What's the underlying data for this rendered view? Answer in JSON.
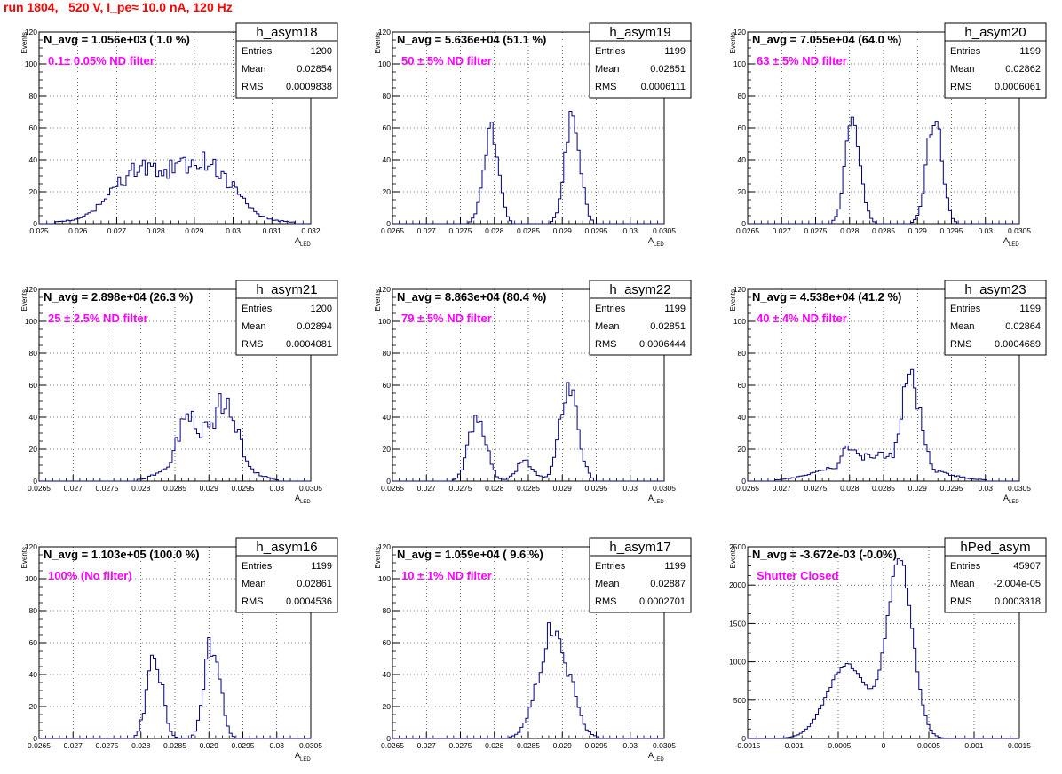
{
  "page": {
    "title": "run 1804,   520 V, I_pe≈ 10.0 nA, 120 Hz"
  },
  "colors": {
    "hist": "#000080",
    "title": "#ff0000",
    "annotation": "#ff00ff",
    "grid": "#000000"
  },
  "chart_data": [
    {
      "type": "histogram",
      "name": "h_asym18",
      "avg_text": "N_avg = 1.056e+03 ( 1.0 %)",
      "filter_text": "0.1± 0.05% ND filter",
      "stats": {
        "entries": "1200",
        "mean": "0.02854",
        "rms": "0.0009838"
      },
      "xlabel": "A",
      "xlabel_sub": "LED",
      "ylabel": "Events",
      "xlim": [
        0.025,
        0.032
      ],
      "ylim": [
        0,
        120
      ],
      "xticks": [
        "0.025",
        "0.026",
        "0.027",
        "0.028",
        "0.029",
        "0.03",
        "0.031",
        "0.032"
      ],
      "yticks": [
        "0",
        "20",
        "40",
        "60",
        "80",
        "100",
        "120"
      ],
      "profile": "broad",
      "peaks": [
        0.0276,
        0.0293
      ],
      "sigma": 0.0009,
      "peak_heights": [
        33,
        36
      ]
    },
    {
      "type": "histogram",
      "name": "h_asym19",
      "avg_text": "N_avg = 5.636e+04 (51.1 %)",
      "filter_text": "50 ± 5% ND filter",
      "stats": {
        "entries": "1199",
        "mean": "0.02851",
        "rms": "0.0006111"
      },
      "xlabel": "A",
      "xlabel_sub": "LED",
      "ylabel": "Events",
      "xlim": [
        0.0265,
        0.0305
      ],
      "ylim": [
        0,
        120
      ],
      "xticks": [
        "0.0265",
        "0.027",
        "0.0275",
        "0.028",
        "0.0285",
        "0.029",
        "0.0295",
        "0.03",
        "0.0305"
      ],
      "yticks": [
        "0",
        "20",
        "40",
        "60",
        "80",
        "100",
        "120"
      ],
      "profile": "double",
      "peaks": [
        0.02795,
        0.02915
      ],
      "sigma": 0.00011,
      "peak_heights": [
        63,
        70
      ]
    },
    {
      "type": "histogram",
      "name": "h_asym20",
      "avg_text": "N_avg = 7.055e+04 (64.0 %)",
      "filter_text": "63 ± 5% ND filter",
      "stats": {
        "entries": "1199",
        "mean": "0.02862",
        "rms": "0.0006061"
      },
      "xlabel": "A",
      "xlabel_sub": "LED",
      "ylabel": "Events",
      "xlim": [
        0.0265,
        0.0305
      ],
      "ylim": [
        0,
        120
      ],
      "xticks": [
        "0.0265",
        "0.027",
        "0.0275",
        "0.028",
        "0.0285",
        "0.029",
        "0.0295",
        "0.03",
        "0.0305"
      ],
      "yticks": [
        "0",
        "20",
        "40",
        "60",
        "80",
        "100",
        "120"
      ],
      "profile": "double",
      "peaks": [
        0.02805,
        0.02925
      ],
      "sigma": 0.00011,
      "peak_heights": [
        65,
        68
      ]
    },
    {
      "type": "histogram",
      "name": "h_asym21",
      "avg_text": "N_avg = 2.898e+04 (26.3 %)",
      "filter_text": "25 ± 2.5% ND filter",
      "stats": {
        "entries": "1200",
        "mean": "0.02894",
        "rms": "0.0004081"
      },
      "xlabel": "A",
      "xlabel_sub": "LED",
      "ylabel": "Events",
      "xlim": [
        0.0265,
        0.0305
      ],
      "ylim": [
        0,
        120
      ],
      "xticks": [
        "0.0265",
        "0.027",
        "0.0275",
        "0.028",
        "0.0285",
        "0.029",
        "0.0295",
        "0.03",
        "0.0305"
      ],
      "yticks": [
        "0",
        "20",
        "40",
        "60",
        "80",
        "100",
        "120"
      ],
      "profile": "broad",
      "peaks": [
        0.0287,
        0.02925
      ],
      "sigma": 0.00022,
      "peak_heights": [
        40,
        52
      ]
    },
    {
      "type": "histogram",
      "name": "h_asym22",
      "avg_text": "N_avg = 8.863e+04 (80.4 %)",
      "filter_text": "79 ± 5% ND filter",
      "stats": {
        "entries": "1199",
        "mean": "0.02851",
        "rms": "0.0006444"
      },
      "xlabel": "A",
      "xlabel_sub": "LED",
      "ylabel": "Events",
      "xlim": [
        0.0265,
        0.0305
      ],
      "ylim": [
        0,
        120
      ],
      "xticks": [
        "0.0265",
        "0.027",
        "0.0275",
        "0.028",
        "0.0285",
        "0.029",
        "0.0295",
        "0.03",
        "0.0305"
      ],
      "yticks": [
        "0",
        "20",
        "40",
        "60",
        "80",
        "100",
        "120"
      ],
      "profile": "triple",
      "peaks": [
        0.02775,
        0.02845,
        0.0291
      ],
      "sigma": 0.00013,
      "peak_heights": [
        38,
        12,
        62
      ]
    },
    {
      "type": "histogram",
      "name": "h_asym23",
      "avg_text": "N_avg = 4.538e+04 (41.2 %)",
      "filter_text": "40 ± 4% ND filter",
      "stats": {
        "entries": "1199",
        "mean": "0.02864",
        "rms": "0.0004689"
      },
      "xlabel": "A",
      "xlabel_sub": "LED",
      "ylabel": "Events",
      "xlim": [
        0.0265,
        0.0305
      ],
      "ylim": [
        0,
        120
      ],
      "xticks": [
        "0.0265",
        "0.027",
        "0.0275",
        "0.028",
        "0.0285",
        "0.029",
        "0.0295",
        "0.03",
        "0.0305"
      ],
      "yticks": [
        "0",
        "20",
        "40",
        "60",
        "80",
        "100",
        "120"
      ],
      "profile": "broad",
      "peaks": [
        0.028,
        0.0289
      ],
      "sigma": 0.0002,
      "peak_heights": [
        20,
        62
      ]
    },
    {
      "type": "histogram",
      "name": "h_asym16",
      "avg_text": "N_avg = 1.103e+05 (100.0 %)",
      "filter_text": "100% (No filter)",
      "stats": {
        "entries": "1199",
        "mean": "0.02861",
        "rms": "0.0004536"
      },
      "xlabel": "A",
      "xlabel_sub": "LED",
      "ylabel": "Events",
      "xlim": [
        0.0265,
        0.0305
      ],
      "ylim": [
        0,
        120
      ],
      "xticks": [
        "0.0265",
        "0.027",
        "0.0275",
        "0.028",
        "0.0285",
        "0.029",
        "0.0295",
        "0.03",
        "0.0305"
      ],
      "yticks": [
        "0",
        "20",
        "40",
        "60",
        "80",
        "100",
        "120"
      ],
      "profile": "double",
      "peaks": [
        0.0282,
        0.02905
      ],
      "sigma": 0.00011,
      "peak_heights": [
        52,
        62
      ]
    },
    {
      "type": "histogram",
      "name": "h_asym17",
      "avg_text": "N_avg = 1.059e+04 ( 9.6 %)",
      "filter_text": "10 ± 1% ND filter",
      "stats": {
        "entries": "1199",
        "mean": "0.02887",
        "rms": "0.0002701"
      },
      "xlabel": "A",
      "xlabel_sub": "LED",
      "ylabel": "Events",
      "xlim": [
        0.0265,
        0.0305
      ],
      "ylim": [
        0,
        120
      ],
      "xticks": [
        "0.0265",
        "0.027",
        "0.0275",
        "0.028",
        "0.0285",
        "0.029",
        "0.0295",
        "0.03",
        "0.0305"
      ],
      "yticks": [
        "0",
        "20",
        "40",
        "60",
        "80",
        "100",
        "120"
      ],
      "profile": "single",
      "peaks": [
        0.02888
      ],
      "sigma": 0.00022,
      "peak_heights": [
        70
      ]
    },
    {
      "type": "histogram",
      "name": "hPed_asym",
      "avg_text": "N_avg = -3.672e-03 (-0.0%)",
      "filter_text": "Shutter Closed",
      "stats": {
        "entries": "45907",
        "mean": "-2.004e-05",
        "rms": "0.0003318"
      },
      "xlabel": "",
      "xlabel_sub": "",
      "ylabel": "Events",
      "xlim": [
        -0.0015,
        0.0015
      ],
      "ylim": [
        0,
        2500
      ],
      "xticks": [
        "-0.0015",
        "-0.001",
        "-0.0005",
        "0",
        "0.0005",
        "0.001",
        "0.0015"
      ],
      "yticks": [
        "0",
        "500",
        "1000",
        "1500",
        "2000",
        "2500"
      ],
      "profile": "ped",
      "peaks": [
        -0.0004,
        0.00018
      ],
      "sigma": 0.00014,
      "peak_heights": [
        950,
        2300
      ]
    }
  ]
}
